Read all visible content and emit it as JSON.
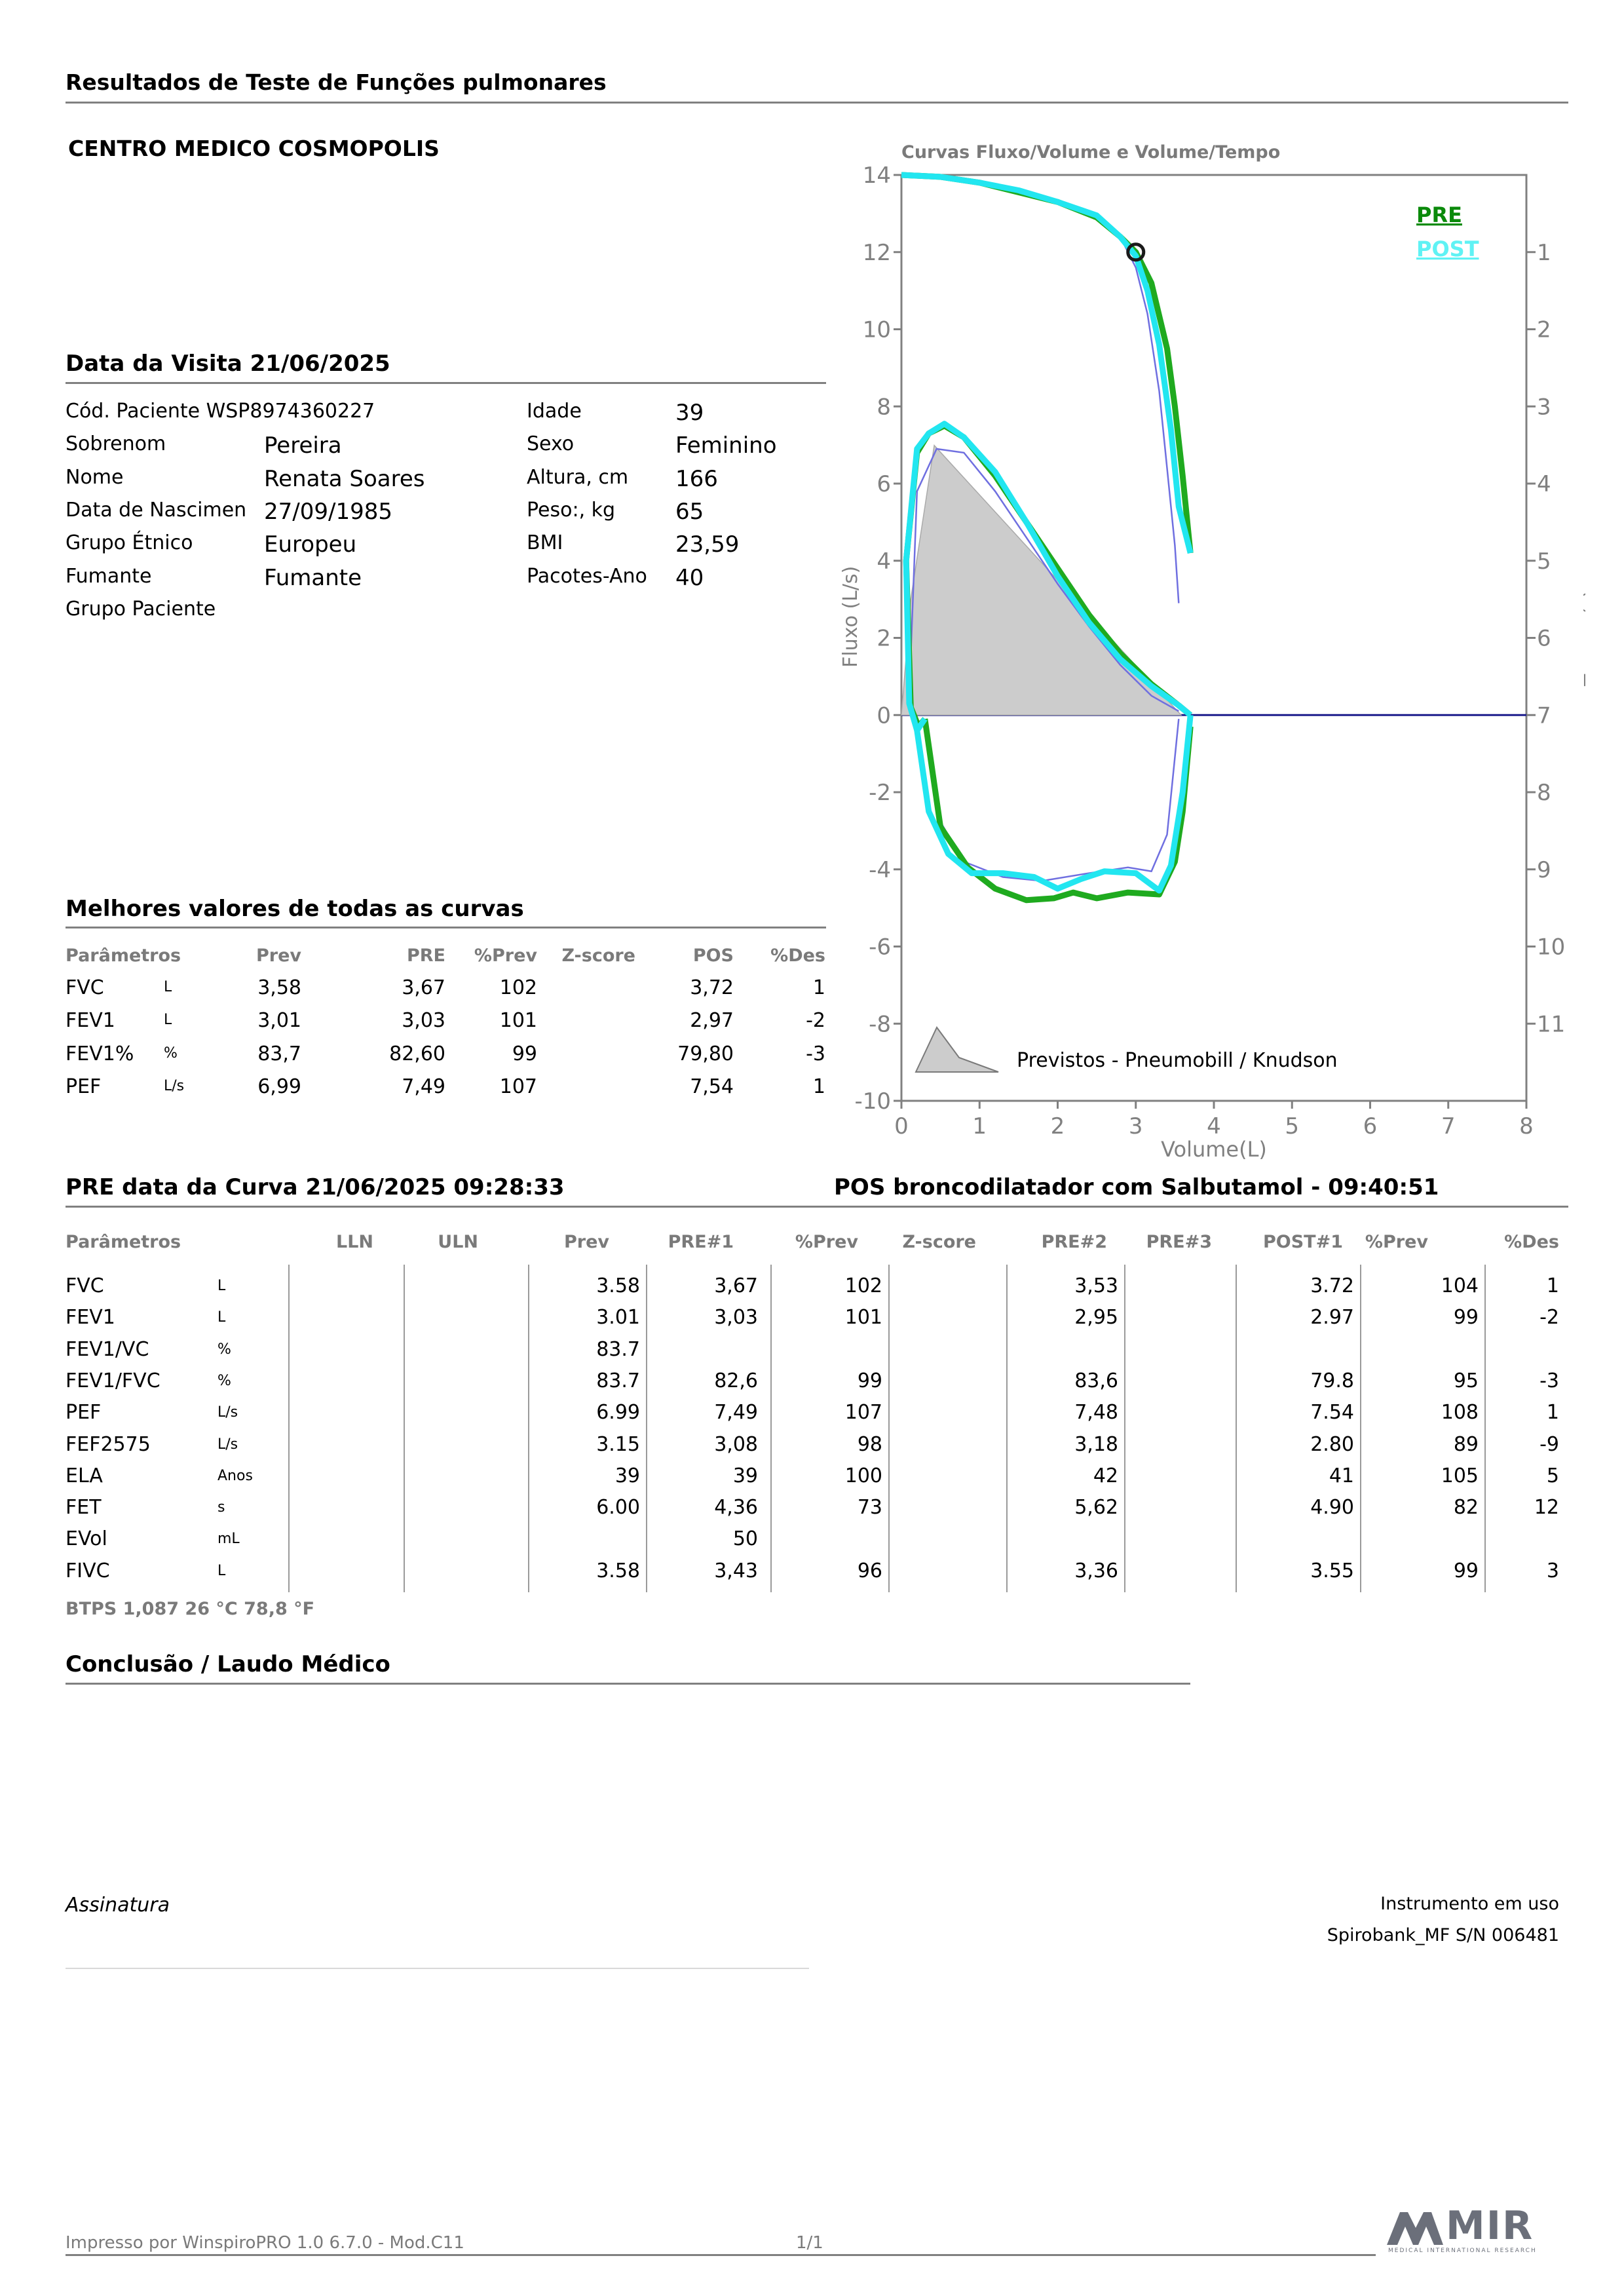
{
  "report_title": "Resultados de Teste de Funções pulmonares",
  "clinic": "CENTRO MEDICO COSMOPOLIS",
  "visit": {
    "title": "Data da Visita 21/06/2025",
    "patient_code": "Cód. Paciente WSP8974360227",
    "labels": {
      "sobrenome": "Sobrenom",
      "nome": "Nome",
      "nascimento": "Data de Nascimen",
      "grupo_etnico": "Grupo Étnico",
      "fumante": "Fumante",
      "grupo_paciente": "Grupo Paciente",
      "idade": "Idade",
      "sexo": "Sexo",
      "altura": "Altura, cm",
      "peso": "Peso:, kg",
      "bmi": "BMI",
      "pacotes": "Pacotes-Ano"
    },
    "values": {
      "sobrenome": "Pereira",
      "nome": "Renata Soares",
      "nascimento": "27/09/1985",
      "grupo_etnico": "Europeu",
      "fumante": "Fumante",
      "idade": "39",
      "sexo": "Feminino",
      "altura": "166",
      "peso": "65",
      "bmi": "23,59",
      "pacotes": "40"
    }
  },
  "best": {
    "title": "Melhores valores de todas as curvas",
    "headers": [
      "Parâmetros",
      "Prev",
      "PRE",
      "%Prev",
      "Z-score",
      "POS",
      "%Des"
    ],
    "rows": [
      {
        "param": "FVC",
        "unit": "L",
        "prev": "3,58",
        "pre": "3,67",
        "pprev": "102",
        "z": "",
        "pos": "3,72",
        "des": "1"
      },
      {
        "param": "FEV1",
        "unit": "L",
        "prev": "3,01",
        "pre": "3,03",
        "pprev": "101",
        "z": "",
        "pos": "2,97",
        "des": "-2"
      },
      {
        "param": "FEV1%",
        "unit": "%",
        "prev": "83,7",
        "pre": "82,60",
        "pprev": "99",
        "z": "",
        "pos": "79,80",
        "des": "-3"
      },
      {
        "param": "PEF",
        "unit": "L/s",
        "prev": "6,99",
        "pre": "7,49",
        "pprev": "107",
        "z": "",
        "pos": "7,54",
        "des": "1"
      }
    ]
  },
  "chart_data": {
    "type": "line",
    "title": "Curvas Fluxo/Volume e Volume/Tempo",
    "xlabel": "Volume(L)",
    "ylabel": "Fluxo (L/s)",
    "y2label": "Tempo (s)",
    "xlim": [
      0,
      8
    ],
    "ylim": [
      -10,
      14
    ],
    "x_ticks": [
      "0",
      "1",
      "2",
      "3",
      "4",
      "5",
      "6",
      "7",
      "8"
    ],
    "y_ticks": [
      "14",
      "12",
      "10",
      "8",
      "6",
      "4",
      "2",
      "0",
      "-2",
      "-4",
      "-6",
      "-8",
      "-10"
    ],
    "y2_ticks": [
      "1",
      "2",
      "3",
      "4",
      "5",
      "6",
      "7",
      "8",
      "9",
      "10",
      "11"
    ],
    "y2_tick_values": [
      12,
      10,
      8,
      6,
      4,
      2,
      0,
      -2,
      -4,
      -6,
      -8
    ],
    "legend": [
      "PRE",
      "POST"
    ],
    "legend_position": "top-right",
    "predicted_label": "Previstos - Pneumobill / Knudson",
    "colors": {
      "pre": "#1faa1f",
      "post": "#22e6f0",
      "predicted": "#cccccc",
      "thin": "#6f6fe0",
      "axis": "#808080"
    },
    "marker": [
      3.0,
      12.0
    ],
    "series": [
      {
        "name": "PRE",
        "role": "volume-time",
        "points": [
          [
            0,
            14
          ],
          [
            0.5,
            13.95
          ],
          [
            1.0,
            13.8
          ],
          [
            1.5,
            13.55
          ],
          [
            2.0,
            13.3
          ],
          [
            2.5,
            12.9
          ],
          [
            2.8,
            12.4
          ],
          [
            3.0,
            12.0
          ],
          [
            3.2,
            11.2
          ],
          [
            3.4,
            9.5
          ],
          [
            3.5,
            8.0
          ],
          [
            3.6,
            6.2
          ],
          [
            3.7,
            4.2
          ]
        ]
      },
      {
        "name": "POST",
        "role": "volume-time",
        "points": [
          [
            0,
            14
          ],
          [
            0.5,
            13.95
          ],
          [
            1.0,
            13.8
          ],
          [
            1.5,
            13.6
          ],
          [
            2.0,
            13.3
          ],
          [
            2.5,
            12.95
          ],
          [
            2.8,
            12.4
          ],
          [
            3.0,
            11.9
          ],
          [
            3.15,
            11.0
          ],
          [
            3.3,
            9.6
          ],
          [
            3.45,
            7.4
          ],
          [
            3.55,
            5.4
          ],
          [
            3.7,
            4.2
          ]
        ]
      },
      {
        "name": "thin",
        "role": "volume-time",
        "points": [
          [
            2.8,
            12.4
          ],
          [
            3.0,
            11.6
          ],
          [
            3.15,
            10.4
          ],
          [
            3.3,
            8.4
          ],
          [
            3.4,
            6.4
          ],
          [
            3.5,
            4.4
          ],
          [
            3.55,
            2.9
          ]
        ]
      },
      {
        "name": "PRE",
        "role": "flow-volume",
        "points": [
          [
            0.3,
            -0.1
          ],
          [
            0.22,
            -0.3
          ],
          [
            0.12,
            0.2
          ],
          [
            0.06,
            4.0
          ],
          [
            0.2,
            6.8
          ],
          [
            0.35,
            7.3
          ],
          [
            0.55,
            7.5
          ],
          [
            0.8,
            7.2
          ],
          [
            1.2,
            6.2
          ],
          [
            1.6,
            5.0
          ],
          [
            2.0,
            3.8
          ],
          [
            2.4,
            2.6
          ],
          [
            2.8,
            1.6
          ],
          [
            3.2,
            0.8
          ],
          [
            3.55,
            0.25
          ],
          [
            3.7,
            0.0
          ]
        ]
      },
      {
        "name": "POST",
        "role": "flow-volume",
        "points": [
          [
            0.3,
            -0.1
          ],
          [
            0.2,
            -0.4
          ],
          [
            0.1,
            0.3
          ],
          [
            0.06,
            4.0
          ],
          [
            0.2,
            6.9
          ],
          [
            0.35,
            7.3
          ],
          [
            0.55,
            7.55
          ],
          [
            0.8,
            7.2
          ],
          [
            1.2,
            6.3
          ],
          [
            1.6,
            5.0
          ],
          [
            2.0,
            3.6
          ],
          [
            2.4,
            2.4
          ],
          [
            2.8,
            1.45
          ],
          [
            3.2,
            0.75
          ],
          [
            3.55,
            0.25
          ],
          [
            3.7,
            0.0
          ]
        ]
      },
      {
        "name": "thin",
        "role": "flow-volume",
        "points": [
          [
            0.1,
            0.5
          ],
          [
            0.2,
            5.8
          ],
          [
            0.45,
            6.9
          ],
          [
            0.8,
            6.8
          ],
          [
            1.2,
            5.8
          ],
          [
            1.6,
            4.6
          ],
          [
            2.0,
            3.4
          ],
          [
            2.4,
            2.3
          ],
          [
            2.8,
            1.3
          ],
          [
            3.2,
            0.5
          ],
          [
            3.55,
            0.1
          ]
        ]
      },
      {
        "name": "PRE",
        "role": "inspiratory",
        "points": [
          [
            0.3,
            -0.1
          ],
          [
            0.5,
            -2.9
          ],
          [
            0.85,
            -3.95
          ],
          [
            1.2,
            -4.5
          ],
          [
            1.6,
            -4.8
          ],
          [
            1.95,
            -4.75
          ],
          [
            2.2,
            -4.6
          ],
          [
            2.5,
            -4.75
          ],
          [
            2.9,
            -4.6
          ],
          [
            3.3,
            -4.65
          ],
          [
            3.5,
            -3.8
          ],
          [
            3.6,
            -2.5
          ],
          [
            3.7,
            -0.3
          ]
        ]
      },
      {
        "name": "POST",
        "role": "inspiratory",
        "points": [
          [
            0.2,
            -0.4
          ],
          [
            0.35,
            -2.5
          ],
          [
            0.6,
            -3.6
          ],
          [
            0.9,
            -4.1
          ],
          [
            1.3,
            -4.1
          ],
          [
            1.7,
            -4.2
          ],
          [
            2.0,
            -4.5
          ],
          [
            2.3,
            -4.25
          ],
          [
            2.6,
            -4.05
          ],
          [
            3.0,
            -4.1
          ],
          [
            3.3,
            -4.55
          ],
          [
            3.45,
            -3.9
          ],
          [
            3.6,
            -2.0
          ],
          [
            3.7,
            0.0
          ]
        ]
      },
      {
        "name": "thin",
        "role": "inspiratory",
        "points": [
          [
            0.45,
            -2.6
          ],
          [
            0.8,
            -3.8
          ],
          [
            1.3,
            -4.2
          ],
          [
            1.8,
            -4.3
          ],
          [
            2.4,
            -4.1
          ],
          [
            2.9,
            -3.95
          ],
          [
            3.2,
            -4.05
          ],
          [
            3.4,
            -3.1
          ],
          [
            3.5,
            -1.1
          ],
          [
            3.55,
            -0.1
          ]
        ]
      },
      {
        "name": "Previstos",
        "role": "predicted",
        "points": [
          [
            0,
            0
          ],
          [
            0.12,
            3.0
          ],
          [
            0.42,
            6.99
          ],
          [
            3.58,
            0
          ]
        ]
      }
    ]
  },
  "curve": {
    "pre_title": "PRE data da Curva 21/06/2025   09:28:33",
    "pos_title": "POS broncodilatador com Salbutamol - 09:40:51",
    "headers": [
      "Parâmetros",
      "LLN",
      "ULN",
      "Prev",
      "PRE#1",
      "%Prev",
      "Z-score",
      "PRE#2",
      "PRE#3",
      "POST#1",
      "%Prev",
      "%Des"
    ],
    "rows": [
      {
        "param": "FVC",
        "unit": "L",
        "lln": "",
        "uln": "",
        "prev": "3.58",
        "pre1": "3,67",
        "pprev": "102",
        "z": "",
        "pre2": "3,53",
        "pre3": "",
        "post1": "3.72",
        "pprev2": "104",
        "des": "1"
      },
      {
        "param": "FEV1",
        "unit": "L",
        "lln": "",
        "uln": "",
        "prev": "3.01",
        "pre1": "3,03",
        "pprev": "101",
        "z": "",
        "pre2": "2,95",
        "pre3": "",
        "post1": "2.97",
        "pprev2": "99",
        "des": "-2"
      },
      {
        "param": "FEV1/VC",
        "unit": "%",
        "lln": "",
        "uln": "",
        "prev": "83.7",
        "pre1": "",
        "pprev": "",
        "z": "",
        "pre2": "",
        "pre3": "",
        "post1": "",
        "pprev2": "",
        "des": ""
      },
      {
        "param": "FEV1/FVC",
        "unit": "%",
        "lln": "",
        "uln": "",
        "prev": "83.7",
        "pre1": "82,6",
        "pprev": "99",
        "z": "",
        "pre2": "83,6",
        "pre3": "",
        "post1": "79.8",
        "pprev2": "95",
        "des": "-3"
      },
      {
        "param": "PEF",
        "unit": "L/s",
        "lln": "",
        "uln": "",
        "prev": "6.99",
        "pre1": "7,49",
        "pprev": "107",
        "z": "",
        "pre2": "7,48",
        "pre3": "",
        "post1": "7.54",
        "pprev2": "108",
        "des": "1"
      },
      {
        "param": "FEF2575",
        "unit": "L/s",
        "lln": "",
        "uln": "",
        "prev": "3.15",
        "pre1": "3,08",
        "pprev": "98",
        "z": "",
        "pre2": "3,18",
        "pre3": "",
        "post1": "2.80",
        "pprev2": "89",
        "des": "-9"
      },
      {
        "param": "ELA",
        "unit": "Anos",
        "lln": "",
        "uln": "",
        "prev": "39",
        "pre1": "39",
        "pprev": "100",
        "z": "",
        "pre2": "42",
        "pre3": "",
        "post1": "41",
        "pprev2": "105",
        "des": "5"
      },
      {
        "param": "FET",
        "unit": "s",
        "lln": "",
        "uln": "",
        "prev": "6.00",
        "pre1": "4,36",
        "pprev": "73",
        "z": "",
        "pre2": "5,62",
        "pre3": "",
        "post1": "4.90",
        "pprev2": "82",
        "des": "12"
      },
      {
        "param": "EVol",
        "unit": "mL",
        "lln": "",
        "uln": "",
        "prev": "",
        "pre1": "50",
        "pprev": "",
        "z": "",
        "pre2": "",
        "pre3": "",
        "post1": "",
        "pprev2": "",
        "des": ""
      },
      {
        "param": "FIVC",
        "unit": "L",
        "lln": "",
        "uln": "",
        "prev": "3.58",
        "pre1": "3,43",
        "pprev": "96",
        "z": "",
        "pre2": "3,36",
        "pre3": "",
        "post1": "3.55",
        "pprev2": "99",
        "des": "3"
      }
    ],
    "btps": "BTPS  1,087  26 °C  78,8 °F"
  },
  "conclusion_title": "Conclusão / Laudo Médico",
  "signature_label": "Assinatura",
  "instrument": {
    "label": "Instrumento em uso",
    "device": "Spirobank_MF S/N 006481"
  },
  "footer": {
    "printed": "Impresso por WinspiroPRO 1.0 6.7.0 - Mod.C11",
    "page": "1/1",
    "logo_text": "MIR",
    "logo_sub": "MEDICAL INTERNATIONAL RESEARCH"
  }
}
